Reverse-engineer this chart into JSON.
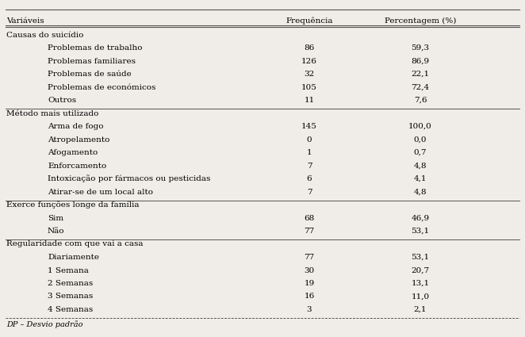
{
  "header": [
    "Variáveis",
    "Frequência",
    "Percentagem (%)"
  ],
  "sections": [
    {
      "title": "Causas do suicídio",
      "rows": [
        [
          "Problemas de trabalho",
          "86",
          "59,3"
        ],
        [
          "Problemas familiares",
          "126",
          "86,9"
        ],
        [
          "Problemas de saúde",
          "32",
          "22,1"
        ],
        [
          "Problemas de económicos",
          "105",
          "72,4"
        ],
        [
          "Outros",
          "11",
          "7,6"
        ]
      ]
    },
    {
      "title": "Método mais utilizado",
      "rows": [
        [
          "Arma de fogo",
          "145",
          "100,0"
        ],
        [
          "Atropelamento",
          "0",
          "0,0"
        ],
        [
          "Afogamento",
          "1",
          "0,7"
        ],
        [
          "Enforcamento",
          "7",
          "4,8"
        ],
        [
          "Intoxicação por fármacos ou pesticidas",
          "6",
          "4,1"
        ],
        [
          "Atirar-se de um local alto",
          "7",
          "4,8"
        ]
      ]
    },
    {
      "title": "Exerce funções longe da família",
      "rows": [
        [
          "Sim",
          "68",
          "46,9"
        ],
        [
          "Não",
          "77",
          "53,1"
        ]
      ]
    },
    {
      "title": "Regularidade com que vai a casa",
      "rows": [
        [
          "Diariamente",
          "77",
          "53,1"
        ],
        [
          "1 Semana",
          "30",
          "20,7"
        ],
        [
          "2 Semanas",
          "19",
          "13,1"
        ],
        [
          "3 Semanas",
          "16",
          "11,0"
        ],
        [
          "4 Semanas",
          "3",
          "2,1"
        ]
      ]
    }
  ],
  "footnote": "DP – Desvio padrão",
  "bg_color": "#f0ede8",
  "font_size": 7.5
}
